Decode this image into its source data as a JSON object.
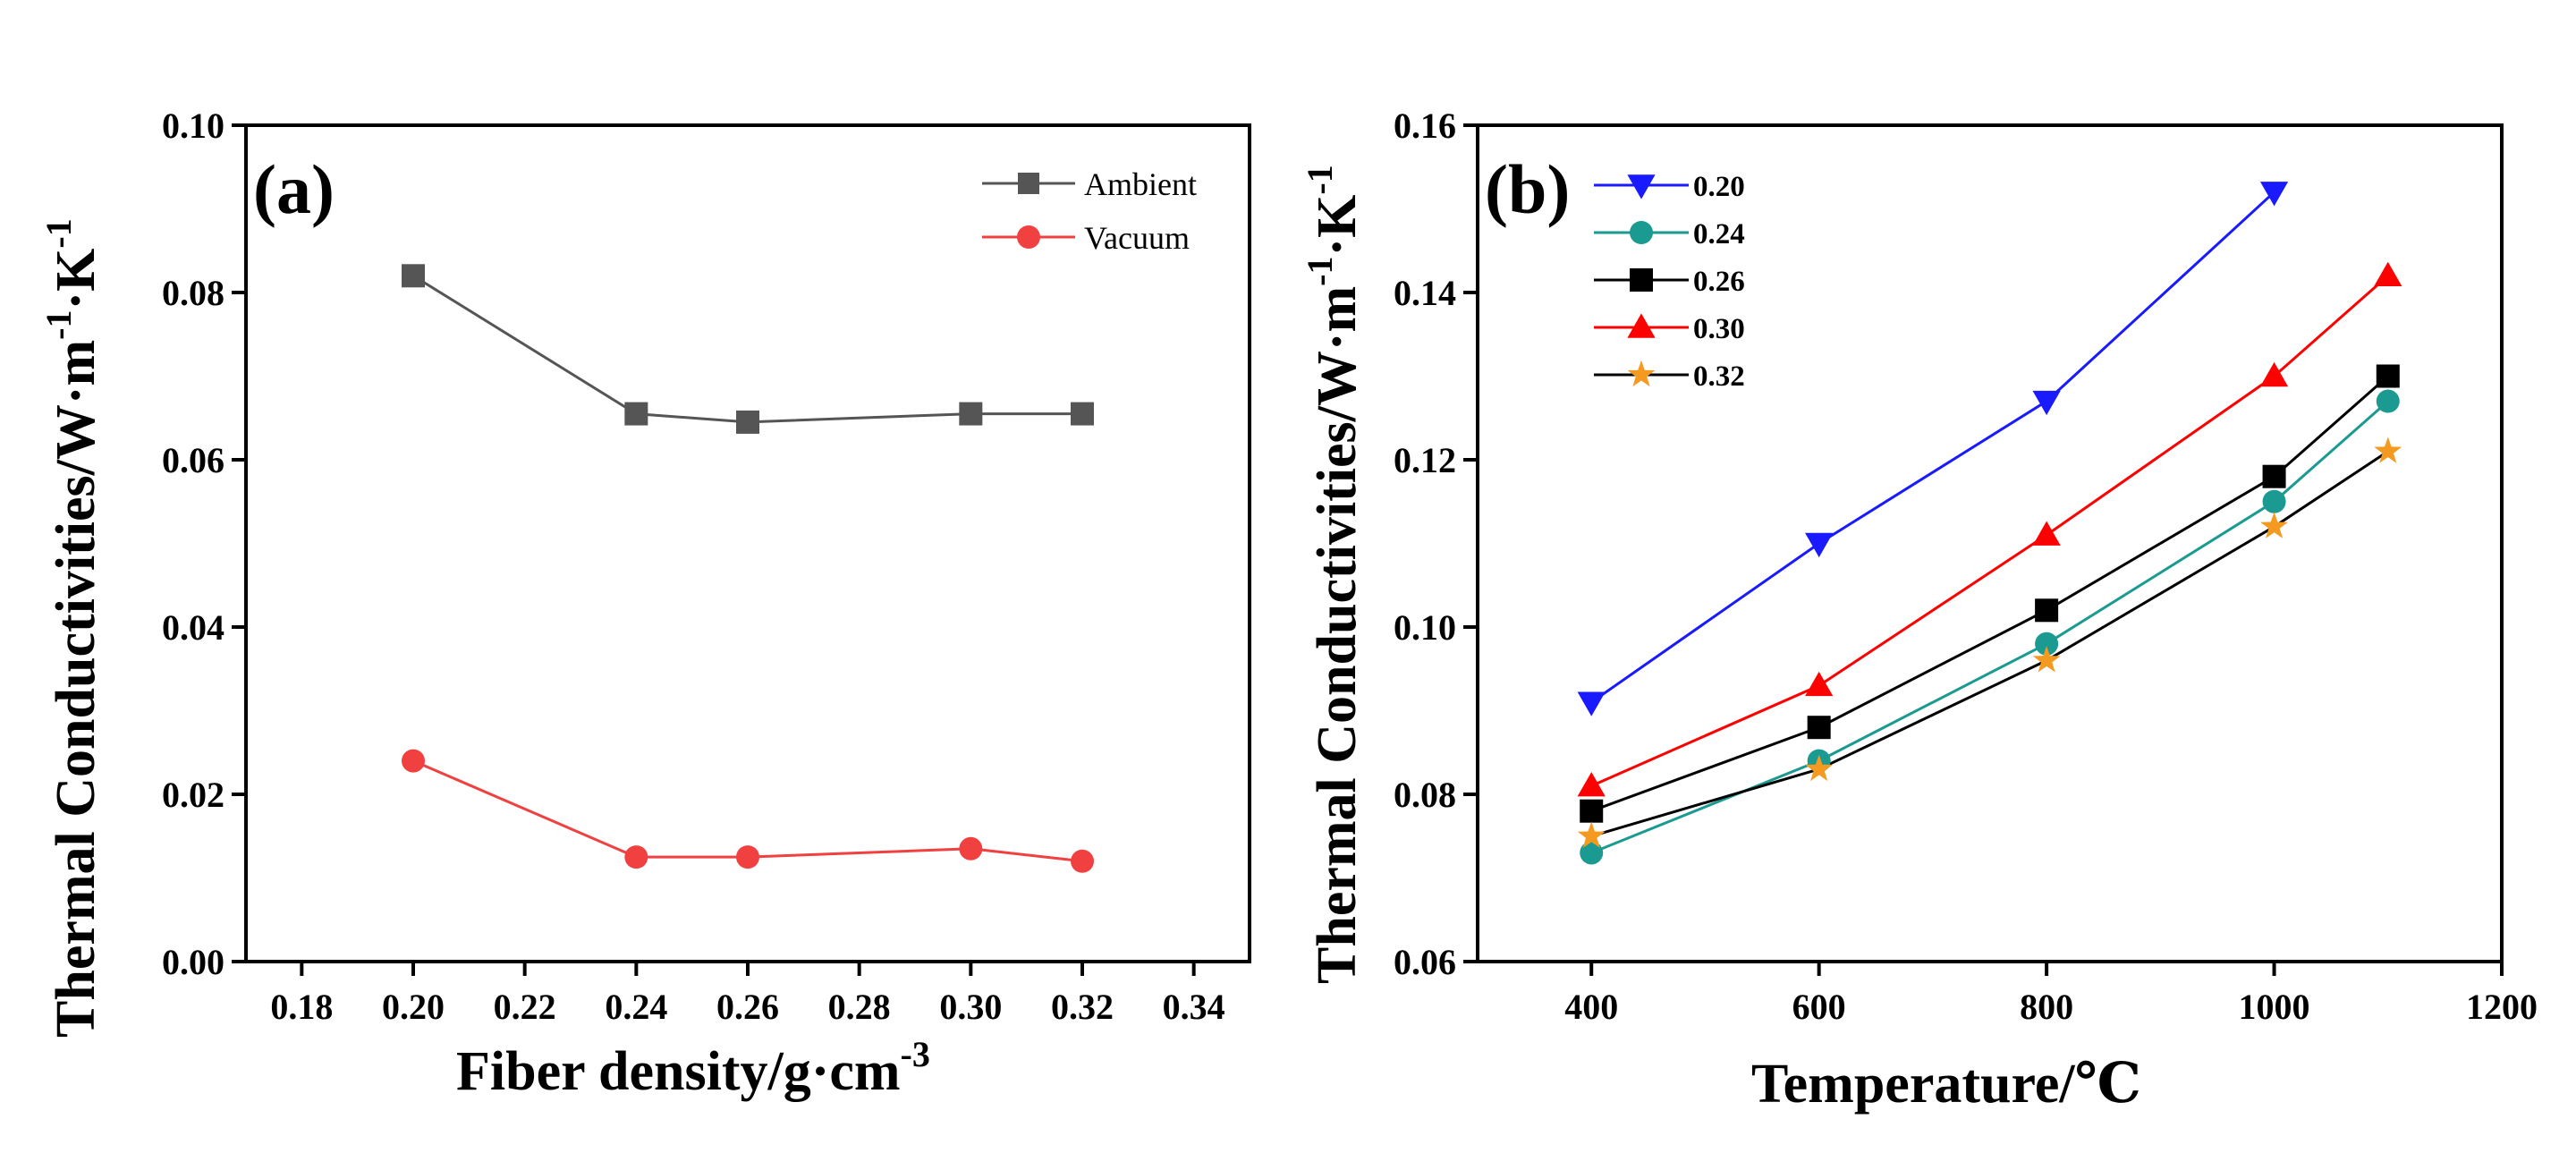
{
  "chart_data": [
    {
      "type": "line",
      "panel_label": "(a)",
      "xlabel": "Fiber density/g·cm",
      "xlabel_sup": "-3",
      "ylabel": "Thermal Conductivities/W·m",
      "ylabel_sup1": "-1",
      "ylabel_mid": "·K",
      "ylabel_sup2": "-1",
      "xlim": [
        0.17,
        0.35
      ],
      "ylim": [
        0.0,
        0.1
      ],
      "xticks": [
        "0.18",
        "0.20",
        "0.22",
        "0.24",
        "0.26",
        "0.28",
        "0.30",
        "0.32",
        "0.34"
      ],
      "yticks": [
        "0.00",
        "0.02",
        "0.04",
        "0.06",
        "0.08",
        "0.10"
      ],
      "legend_position": "top-right",
      "grid": false,
      "series": [
        {
          "name": "Ambient",
          "color": "#555555",
          "marker": "square",
          "x": [
            0.2,
            0.24,
            0.26,
            0.3,
            0.32
          ],
          "values": [
            0.082,
            0.0655,
            0.0645,
            0.0655,
            0.0655
          ]
        },
        {
          "name": "Vacuum",
          "color": "#f04040",
          "marker": "circle",
          "x": [
            0.2,
            0.24,
            0.26,
            0.3,
            0.32
          ],
          "values": [
            0.024,
            0.0125,
            0.0125,
            0.0135,
            0.012
          ]
        }
      ]
    },
    {
      "type": "line",
      "panel_label": "(b)",
      "xlabel": "Temperature/℃",
      "ylabel": "Thermal Conductivities/W·m",
      "ylabel_sup1": "-1",
      "ylabel_mid": "·K",
      "ylabel_sup2": "-1",
      "xlim": [
        300,
        1200
      ],
      "ylim": [
        0.06,
        0.16
      ],
      "xticks": [
        "400",
        "600",
        "800",
        "1000",
        "1200"
      ],
      "yticks": [
        "0.06",
        "0.08",
        "0.10",
        "0.12",
        "0.14",
        "0.16"
      ],
      "legend_position": "top-left",
      "grid": false,
      "series": [
        {
          "name": "0.20",
          "color": "#1a1aff",
          "line_color": "#1a1aff",
          "marker": "triangle-down",
          "x": [
            400,
            600,
            800,
            1000
          ],
          "values": [
            0.091,
            0.11,
            0.127,
            0.152
          ]
        },
        {
          "name": "0.24",
          "color": "#1a9a90",
          "line_color": "#1a9a90",
          "marker": "circle",
          "x": [
            400,
            600,
            800,
            1000,
            1100
          ],
          "values": [
            0.073,
            0.084,
            0.098,
            0.115,
            0.127
          ]
        },
        {
          "name": "0.26",
          "color": "#000000",
          "line_color": "#000000",
          "marker": "square",
          "x": [
            400,
            600,
            800,
            1000,
            1100
          ],
          "values": [
            0.078,
            0.088,
            0.102,
            0.118,
            0.13
          ]
        },
        {
          "name": "0.30",
          "color": "#ff0000",
          "line_color": "#ff0000",
          "marker": "triangle-up",
          "x": [
            400,
            600,
            800,
            1000,
            1100
          ],
          "values": [
            0.081,
            0.093,
            0.111,
            0.13,
            0.142
          ]
        },
        {
          "name": "0.32",
          "color": "#f59a20",
          "line_color": "#000000",
          "marker": "star",
          "x": [
            400,
            600,
            800,
            1000,
            1100
          ],
          "values": [
            0.075,
            0.083,
            0.096,
            0.112,
            0.121
          ]
        }
      ]
    }
  ]
}
